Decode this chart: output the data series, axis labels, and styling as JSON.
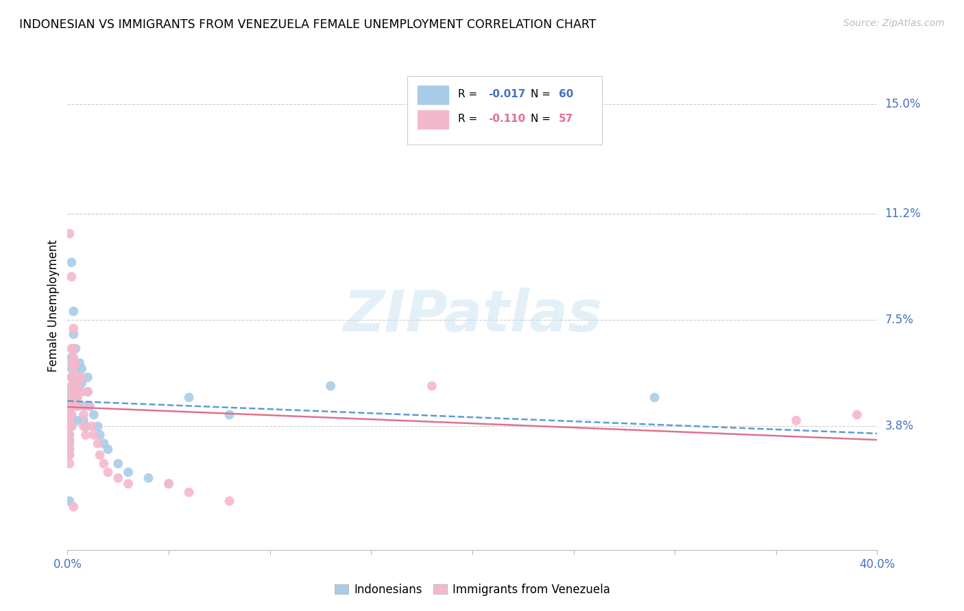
{
  "title": "INDONESIAN VS IMMIGRANTS FROM VENEZUELA FEMALE UNEMPLOYMENT CORRELATION CHART",
  "source": "Source: ZipAtlas.com",
  "ylabel": "Female Unemployment",
  "right_yticks": [
    "15.0%",
    "11.2%",
    "7.5%",
    "3.8%"
  ],
  "right_ytick_vals": [
    0.15,
    0.112,
    0.075,
    0.038
  ],
  "color_blue": "#a8cce8",
  "color_pink": "#f4b8cc",
  "color_blue_line": "#5b9bd5",
  "color_pink_line": "#e07090",
  "watermark": "ZIPatlas",
  "xlim": [
    0.0,
    0.4
  ],
  "ylim": [
    -0.005,
    0.165
  ],
  "indonesian_x": [
    0.001,
    0.001,
    0.001,
    0.001,
    0.001,
    0.001,
    0.001,
    0.001,
    0.001,
    0.001,
    0.002,
    0.002,
    0.002,
    0.002,
    0.002,
    0.002,
    0.002,
    0.002,
    0.002,
    0.002,
    0.003,
    0.003,
    0.003,
    0.003,
    0.003,
    0.003,
    0.003,
    0.004,
    0.004,
    0.004,
    0.004,
    0.005,
    0.005,
    0.005,
    0.005,
    0.006,
    0.006,
    0.006,
    0.007,
    0.007,
    0.008,
    0.008,
    0.009,
    0.01,
    0.01,
    0.011,
    0.013,
    0.015,
    0.016,
    0.018,
    0.02,
    0.025,
    0.03,
    0.04,
    0.05,
    0.06,
    0.08,
    0.13,
    0.29,
    0.001
  ],
  "indonesian_y": [
    0.05,
    0.048,
    0.045,
    0.043,
    0.04,
    0.038,
    0.035,
    0.033,
    0.03,
    0.028,
    0.095,
    0.062,
    0.058,
    0.055,
    0.052,
    0.048,
    0.045,
    0.042,
    0.04,
    0.038,
    0.078,
    0.07,
    0.065,
    0.06,
    0.055,
    0.052,
    0.048,
    0.065,
    0.058,
    0.053,
    0.048,
    0.055,
    0.05,
    0.045,
    0.04,
    0.06,
    0.055,
    0.05,
    0.058,
    0.053,
    0.045,
    0.04,
    0.038,
    0.055,
    0.05,
    0.045,
    0.042,
    0.038,
    0.035,
    0.032,
    0.03,
    0.025,
    0.022,
    0.02,
    0.018,
    0.048,
    0.042,
    0.052,
    0.048,
    0.012
  ],
  "venezuela_x": [
    0.001,
    0.001,
    0.001,
    0.001,
    0.001,
    0.001,
    0.001,
    0.001,
    0.001,
    0.001,
    0.002,
    0.002,
    0.002,
    0.002,
    0.002,
    0.002,
    0.002,
    0.002,
    0.003,
    0.003,
    0.003,
    0.003,
    0.003,
    0.003,
    0.004,
    0.004,
    0.004,
    0.004,
    0.005,
    0.005,
    0.005,
    0.006,
    0.006,
    0.007,
    0.007,
    0.008,
    0.008,
    0.009,
    0.01,
    0.01,
    0.012,
    0.013,
    0.015,
    0.016,
    0.018,
    0.02,
    0.025,
    0.03,
    0.18,
    0.36,
    0.39,
    0.05,
    0.06,
    0.08,
    0.002,
    0.003,
    0.001
  ],
  "venezuela_y": [
    0.048,
    0.045,
    0.043,
    0.04,
    0.038,
    0.035,
    0.032,
    0.03,
    0.028,
    0.025,
    0.09,
    0.06,
    0.055,
    0.052,
    0.048,
    0.045,
    0.042,
    0.038,
    0.072,
    0.065,
    0.062,
    0.058,
    0.055,
    0.05,
    0.06,
    0.055,
    0.05,
    0.045,
    0.052,
    0.048,
    0.045,
    0.055,
    0.05,
    0.055,
    0.05,
    0.042,
    0.038,
    0.035,
    0.05,
    0.045,
    0.038,
    0.035,
    0.032,
    0.028,
    0.025,
    0.022,
    0.02,
    0.018,
    0.052,
    0.04,
    0.042,
    0.018,
    0.015,
    0.012,
    0.065,
    0.01,
    0.105
  ]
}
